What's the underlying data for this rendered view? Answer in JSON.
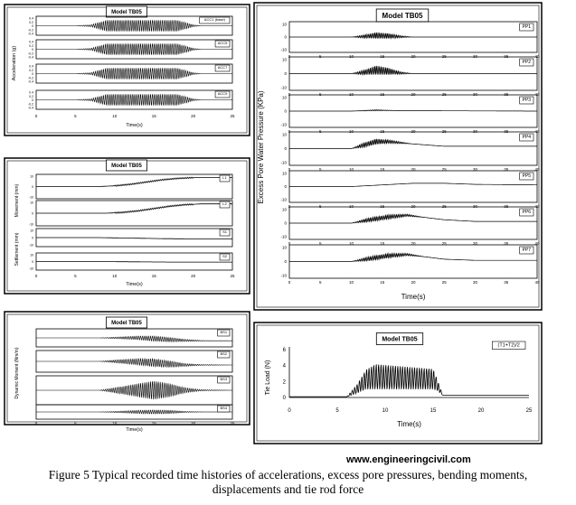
{
  "website": "www.engineeringcivil.com",
  "caption_line1": "Figure 5 Typical recorded time histories of accelerations, excess pore pressures, bending moments,",
  "caption_line2": "displacements and tie rod force",
  "chart_data": [
    {
      "id": "acc",
      "type": "line",
      "title": "Model TB05",
      "ylabel": "Acceleration (g)",
      "xlabel": "Time(s)",
      "xlim": [
        0,
        25
      ],
      "x_ticks": [
        "0",
        "5",
        "10",
        "15",
        "20",
        "25"
      ],
      "y_ticks": [
        "-0.4",
        "-0.2",
        "0",
        "0.2",
        "0.4"
      ],
      "series": [
        {
          "name": "ACC1 (base)",
          "t": [
            0,
            5,
            7,
            9,
            12,
            15,
            18,
            20,
            21,
            25
          ],
          "amp": [
            0,
            0,
            0.05,
            0.3,
            0.3,
            0.3,
            0.3,
            0.05,
            0,
            0
          ]
        },
        {
          "name": "ACC5",
          "t": [
            0,
            5,
            7,
            9,
            12,
            15,
            18,
            20,
            21,
            25
          ],
          "amp": [
            0,
            0,
            0.05,
            0.3,
            0.3,
            0.3,
            0.3,
            0.05,
            0,
            0
          ]
        },
        {
          "name": "ACC7",
          "t": [
            0,
            5,
            7,
            9,
            12,
            15,
            18,
            20,
            21,
            25
          ],
          "amp": [
            0,
            0,
            0.05,
            0.3,
            0.3,
            0.3,
            0.3,
            0.05,
            0,
            0
          ]
        },
        {
          "name": "ACC9",
          "t": [
            0,
            5,
            7,
            9,
            12,
            15,
            18,
            20,
            21,
            25
          ],
          "amp": [
            0,
            0,
            0.05,
            0.3,
            0.3,
            0.3,
            0.3,
            0.05,
            0,
            0
          ]
        }
      ]
    },
    {
      "id": "disp",
      "type": "line",
      "title": "Model TB05",
      "ylabel_top": "Movement (mm)",
      "ylabel_bottom": "Settlement (mm)",
      "xlabel": "Time(s)",
      "xlim": [
        0,
        25
      ],
      "x_ticks": [
        "0",
        "5",
        "10",
        "15",
        "20",
        "25"
      ],
      "y_ticks": [
        "-10",
        "0",
        "10"
      ],
      "series": [
        {
          "name": "L1",
          "t": [
            0,
            8,
            10,
            12,
            14,
            16,
            18,
            20,
            25
          ],
          "v": [
            0,
            0,
            1,
            3,
            6,
            9,
            11,
            12,
            12
          ]
        },
        {
          "name": "L2",
          "t": [
            0,
            9,
            11,
            13,
            15,
            17,
            19,
            21,
            25
          ],
          "v": [
            0,
            0,
            1,
            3,
            6,
            9,
            11,
            12,
            12
          ]
        },
        {
          "name": "S1",
          "t": [
            0,
            8,
            12,
            16,
            20,
            25
          ],
          "v": [
            0,
            0,
            -1,
            -2,
            -2.5,
            -2.5
          ]
        },
        {
          "name": "S2",
          "t": [
            0,
            8,
            12,
            16,
            20,
            25
          ],
          "v": [
            0,
            0,
            -0.5,
            -1,
            -1.2,
            -1.2
          ]
        }
      ]
    },
    {
      "id": "bm",
      "type": "line",
      "title": "Model TB05",
      "ylabel": "Dynamic Moment (Nm/m)",
      "xlabel": "Time(s)",
      "xlim": [
        0,
        25
      ],
      "x_ticks": [
        "0",
        "5",
        "10",
        "15",
        "20",
        "25"
      ],
      "series": [
        {
          "name": "BS1",
          "t": [
            0,
            8,
            10,
            13,
            15,
            17,
            19,
            21,
            25
          ],
          "amp": [
            0,
            0,
            0.1,
            0.25,
            0.35,
            0.3,
            0.15,
            0.05,
            0
          ],
          "drift": [
            0,
            0,
            0,
            0,
            -0.1,
            -0.25,
            -0.35,
            -0.4,
            -0.4
          ]
        },
        {
          "name": "BS2",
          "t": [
            0,
            8,
            10,
            13,
            15,
            17,
            19,
            21,
            25
          ],
          "amp": [
            0,
            0,
            0.15,
            0.35,
            0.45,
            0.35,
            0.15,
            0.05,
            0
          ],
          "drift": [
            0,
            0,
            0,
            -0.05,
            -0.15,
            -0.3,
            -0.4,
            -0.4,
            -0.4
          ]
        },
        {
          "name": "BS3",
          "t": [
            0,
            8,
            10,
            13,
            15,
            17,
            19,
            21,
            25
          ],
          "amp": [
            0,
            0,
            0.2,
            0.55,
            0.75,
            0.55,
            0.2,
            0.05,
            0
          ],
          "drift": [
            0,
            0,
            0,
            0,
            0,
            0,
            0,
            0,
            0
          ]
        },
        {
          "name": "BS4",
          "t": [
            0,
            8,
            10,
            13,
            15,
            17,
            19,
            21,
            25
          ],
          "amp": [
            0,
            0,
            0.1,
            0.3,
            0.35,
            0.3,
            0.1,
            0.02,
            0
          ],
          "drift": [
            0,
            0,
            0,
            0,
            0,
            0,
            0,
            0,
            0
          ]
        }
      ]
    },
    {
      "id": "pp",
      "type": "line",
      "title": "Model TB05",
      "ylabel": "Excess Pore Water Pressure (KPa)",
      "xlabel": "Time(s)",
      "xlim": [
        0,
        40
      ],
      "x_ticks": [
        "0",
        "5",
        "10",
        "15",
        "20",
        "25",
        "30",
        "35",
        "40"
      ],
      "y_ticks": [
        "-10",
        "0",
        "10"
      ],
      "series": [
        {
          "name": "PP1",
          "t": [
            0,
            10,
            12,
            14,
            16,
            18,
            20,
            40
          ],
          "v": [
            0,
            0,
            0.5,
            1.5,
            1,
            0.3,
            0,
            0
          ],
          "amp": [
            0,
            0,
            3,
            6,
            5,
            2,
            0,
            0
          ]
        },
        {
          "name": "PP2",
          "t": [
            0,
            10,
            12,
            14,
            16,
            18,
            20,
            40
          ],
          "v": [
            0,
            0,
            1,
            3,
            2,
            0.5,
            0,
            0
          ],
          "amp": [
            0,
            0,
            4,
            8,
            6,
            2,
            0,
            0
          ]
        },
        {
          "name": "PP3",
          "t": [
            0,
            10,
            14,
            18,
            40
          ],
          "v": [
            0,
            0,
            0.8,
            0.4,
            0
          ],
          "amp": [
            0,
            0,
            1,
            0,
            0
          ]
        },
        {
          "name": "PP4",
          "t": [
            0,
            10,
            12,
            14,
            16,
            20,
            25,
            40
          ],
          "v": [
            0,
            0,
            3,
            6,
            6,
            4,
            2,
            2
          ],
          "amp": [
            0,
            0,
            4,
            5,
            3,
            0,
            0,
            0
          ]
        },
        {
          "name": "PP5",
          "t": [
            0,
            10,
            15,
            20,
            25,
            30,
            40
          ],
          "v": [
            0,
            0,
            1.5,
            3,
            3,
            2,
            1.5
          ],
          "amp": [
            0,
            0,
            0,
            0,
            0,
            0,
            0
          ]
        },
        {
          "name": "PP6",
          "t": [
            0,
            10,
            13,
            16,
            19,
            22,
            25,
            30,
            40
          ],
          "v": [
            0,
            0,
            3,
            5.5,
            7,
            5,
            3,
            1.5,
            1.5
          ],
          "amp": [
            0,
            0,
            4,
            4,
            2,
            0,
            0,
            0,
            0
          ]
        },
        {
          "name": "PP7",
          "t": [
            0,
            10,
            13,
            16,
            19,
            22,
            25,
            30,
            40
          ],
          "v": [
            0,
            0,
            2.5,
            5,
            6,
            4,
            2,
            1,
            1
          ],
          "amp": [
            0,
            0,
            4,
            4,
            2,
            0,
            0,
            0,
            0
          ]
        }
      ]
    },
    {
      "id": "tie",
      "type": "line",
      "title": "Model TB05",
      "ylabel": "Tie Load (N)",
      "xlabel": "Time(s)",
      "xlim": [
        0,
        25
      ],
      "ylim": [
        0,
        6
      ],
      "x_ticks": [
        "0",
        "5",
        "10",
        "15",
        "20",
        "25"
      ],
      "y_ticks": [
        "0",
        "2",
        "4",
        "6"
      ],
      "series": [
        {
          "name": "(T1+T2)/2",
          "t": [
            0,
            6,
            7,
            8,
            9,
            11,
            13,
            15,
            15.5,
            16,
            25
          ],
          "low": [
            0.1,
            0.1,
            0.5,
            1,
            1,
            1,
            1,
            1,
            0.8,
            0.3,
            0.3
          ],
          "high": [
            0.1,
            0.1,
            1.5,
            3.5,
            4.2,
            4,
            3.8,
            3.6,
            2,
            0.3,
            0.3
          ]
        }
      ]
    }
  ]
}
